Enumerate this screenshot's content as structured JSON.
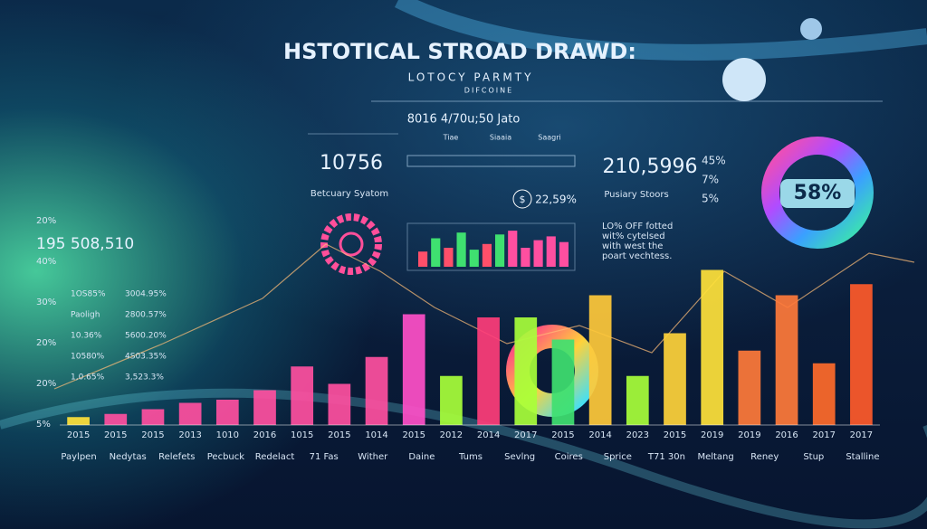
{
  "header": {
    "title": "HSTOTICAL STROAD DRAWD:",
    "subtitle": "LOTOCY PARMTY",
    "caption": "DIFCOINE"
  },
  "panels": {
    "center_heading": "8016 4/70u;50 Jato",
    "center_tabs": [
      "Tiae",
      "Siaaia",
      "Saagri"
    ],
    "stat_1": "10756",
    "stat_1_label": "Betcuary Syatom",
    "currency": "$",
    "stat_2": "22,59%",
    "stat_3": "210,5996",
    "stat_3_label": "Pusiary Stoors",
    "legend": [
      "45%",
      "7%",
      "5%"
    ],
    "donut_label": "58%",
    "note": [
      "LO% OFF fotted",
      "wit% cytelsed",
      "with west the",
      "poart vechtess."
    ],
    "left_stat": "195 508,510",
    "side_labels": [
      "20%",
      "40%",
      "30%",
      "20%",
      "20%",
      "5%"
    ],
    "left_rows": [
      [
        "1OS85%",
        "3004.95%"
      ],
      [
        "Paoligh",
        "2800.57%"
      ],
      [
        "10.36%",
        "5600.20%"
      ],
      [
        "10580%",
        "4S03.35%"
      ],
      [
        "1,0.65%",
        "3,523.3%"
      ]
    ],
    "bottom_labels": [
      "Paylpen",
      "Nedytas",
      "Relefets",
      "Pecbuck",
      "Redelact",
      "71 Fas",
      "Wither",
      "Daine",
      "Tums",
      "Sevlng",
      "Coires",
      "Sprice",
      "T71 30n",
      "Meltang",
      "Reney",
      "Stup",
      "Stalline"
    ],
    "mini_chart": {
      "values": [
        40,
        75,
        50,
        90,
        45,
        60,
        85,
        95,
        50,
        70,
        80,
        65
      ],
      "colors": [
        "#ff4f6a",
        "#3fe070",
        "#ff4f6a",
        "#3fe070",
        "#3fe070",
        "#ff4f6a",
        "#3fe070",
        "#ff4fa0",
        "#ff4fa0",
        "#ff4fa0",
        "#ff4fa0",
        "#ff4fa0"
      ]
    }
  },
  "chart_data": {
    "type": "bar",
    "categories": [
      "2015",
      "2015",
      "2015",
      "2013",
      "1010",
      "2016",
      "1015",
      "2015",
      "1014",
      "2015",
      "2012",
      "2014",
      "2017",
      "2015",
      "2014",
      "2023",
      "2015",
      "2019",
      "2019",
      "2016",
      "2017",
      "2017"
    ],
    "values": [
      5,
      7,
      10,
      14,
      16,
      22,
      37,
      26,
      43,
      70,
      31,
      68,
      68,
      54,
      82,
      31,
      58,
      98,
      47,
      82,
      39,
      89
    ],
    "colors": [
      "#ffe23a",
      "#ff4fa0",
      "#ff4fa0",
      "#ff4fa0",
      "#ff4fa0",
      "#ff4fa0",
      "#ff4fa0",
      "#ff4fa0",
      "#ff4fa0",
      "#ff4fc8",
      "#a8ff3a",
      "#ff3d7a",
      "#a8ff3a",
      "#3fe070",
      "#ffc93a",
      "#a8ff3a",
      "#ffd23a",
      "#ffe23a",
      "#ff7a3a",
      "#ff7a3a",
      "#ff6a2a",
      "#ff5a2a"
    ],
    "ylim": [
      0,
      100
    ]
  }
}
